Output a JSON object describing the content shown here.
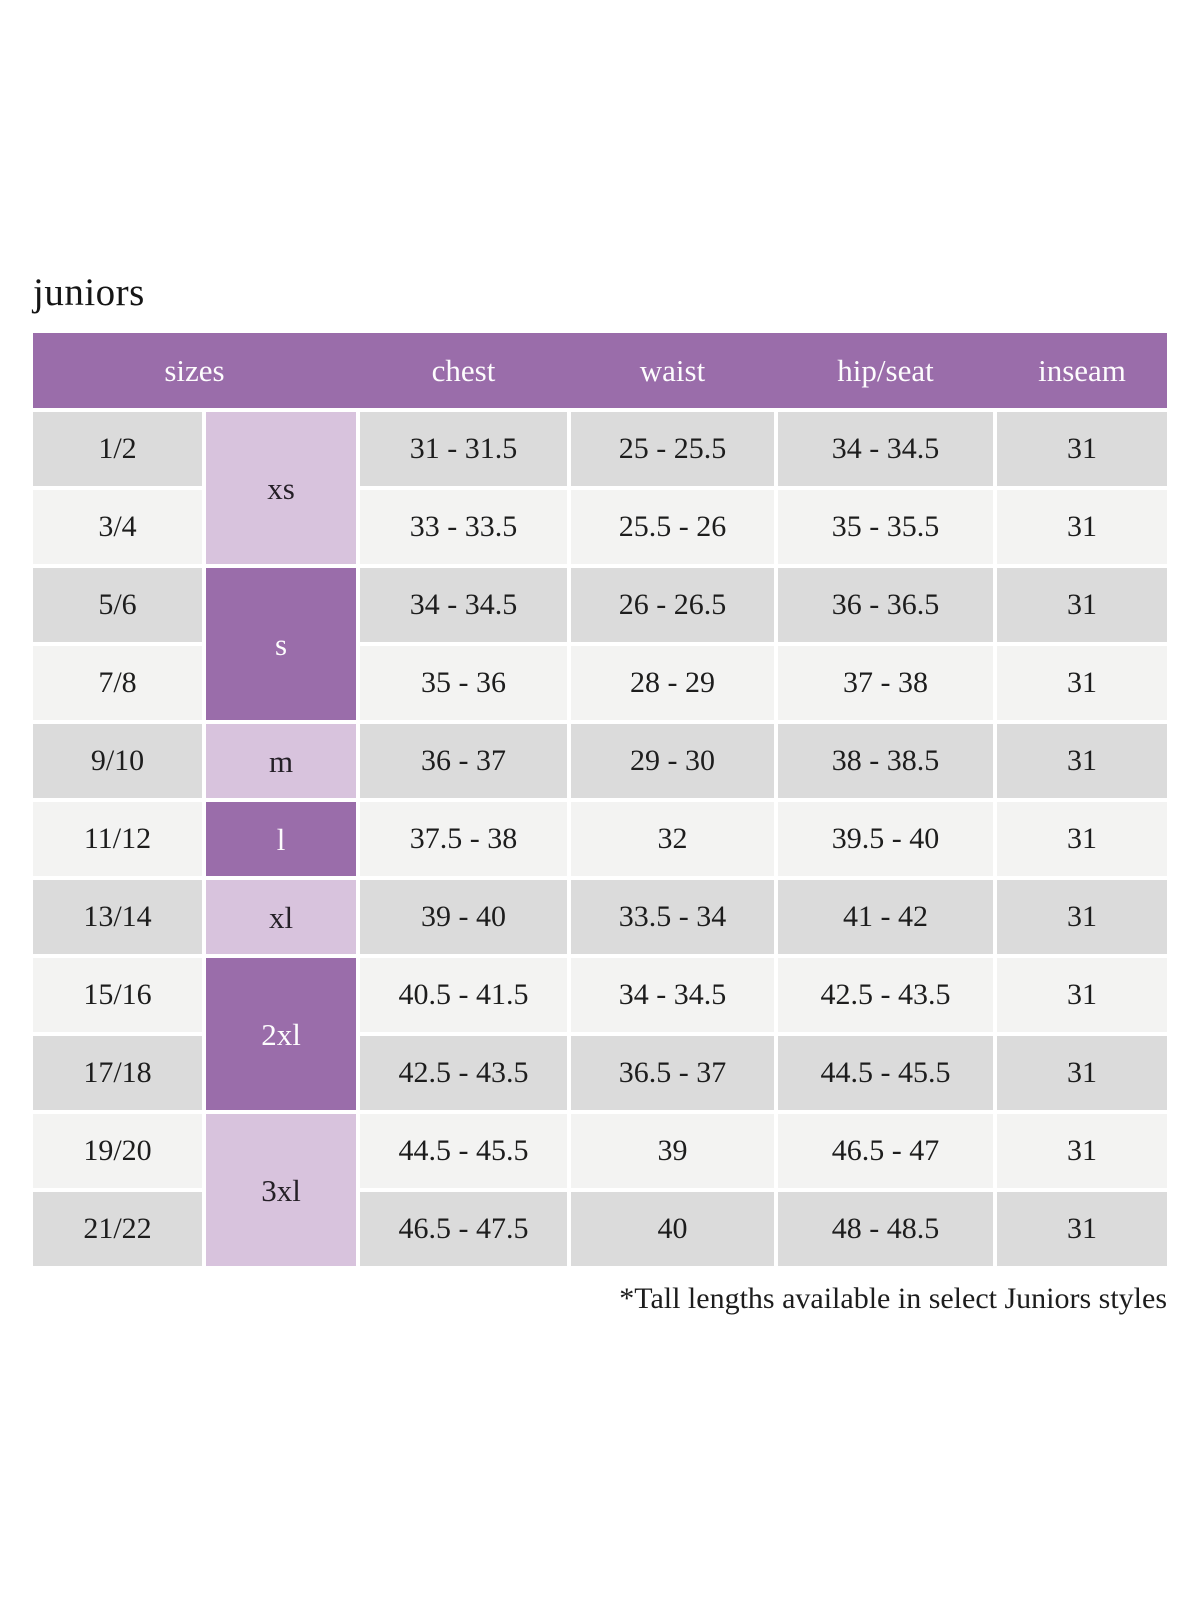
{
  "title": "juniors",
  "footnote": "*Tall lengths available in select Juniors styles",
  "colors": {
    "header_purple": "#9a6daa",
    "group_lavender": "#d8c3dd",
    "row_gray": "#dbdbdb",
    "row_light": "#f3f3f2",
    "header_text": "#fdfcfd",
    "body_text": "#1d1d1d"
  },
  "table": {
    "headers": {
      "sizes": "sizes",
      "chest": "chest",
      "waist": "waist",
      "hip_seat": "hip/seat",
      "inseam": "inseam"
    },
    "size_groups": [
      {
        "label": "xs",
        "rows_spanned": 2,
        "tone": "light"
      },
      {
        "label": "s",
        "rows_spanned": 2,
        "tone": "dark"
      },
      {
        "label": "m",
        "rows_spanned": 1,
        "tone": "light"
      },
      {
        "label": "l",
        "rows_spanned": 1,
        "tone": "dark"
      },
      {
        "label": "xl",
        "rows_spanned": 1,
        "tone": "light"
      },
      {
        "label": "2xl",
        "rows_spanned": 2,
        "tone": "dark"
      },
      {
        "label": "3xl",
        "rows_spanned": 2,
        "tone": "light"
      }
    ],
    "rows": [
      {
        "size": "1/2",
        "chest": "31 - 31.5",
        "waist": "25 - 25.5",
        "hip_seat": "34 - 34.5",
        "inseam": "31"
      },
      {
        "size": "3/4",
        "chest": "33 - 33.5",
        "waist": "25.5 - 26",
        "hip_seat": "35 - 35.5",
        "inseam": "31"
      },
      {
        "size": "5/6",
        "chest": "34 - 34.5",
        "waist": "26 - 26.5",
        "hip_seat": "36 - 36.5",
        "inseam": "31"
      },
      {
        "size": "7/8",
        "chest": "35 - 36",
        "waist": "28 - 29",
        "hip_seat": "37 - 38",
        "inseam": "31"
      },
      {
        "size": "9/10",
        "chest": "36 - 37",
        "waist": "29 - 30",
        "hip_seat": "38 - 38.5",
        "inseam": "31"
      },
      {
        "size": "11/12",
        "chest": "37.5 - 38",
        "waist": "32",
        "hip_seat": "39.5 - 40",
        "inseam": "31"
      },
      {
        "size": "13/14",
        "chest": "39 - 40",
        "waist": "33.5 - 34",
        "hip_seat": "41 - 42",
        "inseam": "31"
      },
      {
        "size": "15/16",
        "chest": "40.5 - 41.5",
        "waist": "34 - 34.5",
        "hip_seat": "42.5 - 43.5",
        "inseam": "31"
      },
      {
        "size": "17/18",
        "chest": "42.5 - 43.5",
        "waist": "36.5 - 37",
        "hip_seat": "44.5 - 45.5",
        "inseam": "31"
      },
      {
        "size": "19/20",
        "chest": "44.5 - 45.5",
        "waist": "39",
        "hip_seat": "46.5 - 47",
        "inseam": "31"
      },
      {
        "size": "21/22",
        "chest": "46.5 - 47.5",
        "waist": "40",
        "hip_seat": "48 - 48.5",
        "inseam": "31"
      }
    ]
  }
}
